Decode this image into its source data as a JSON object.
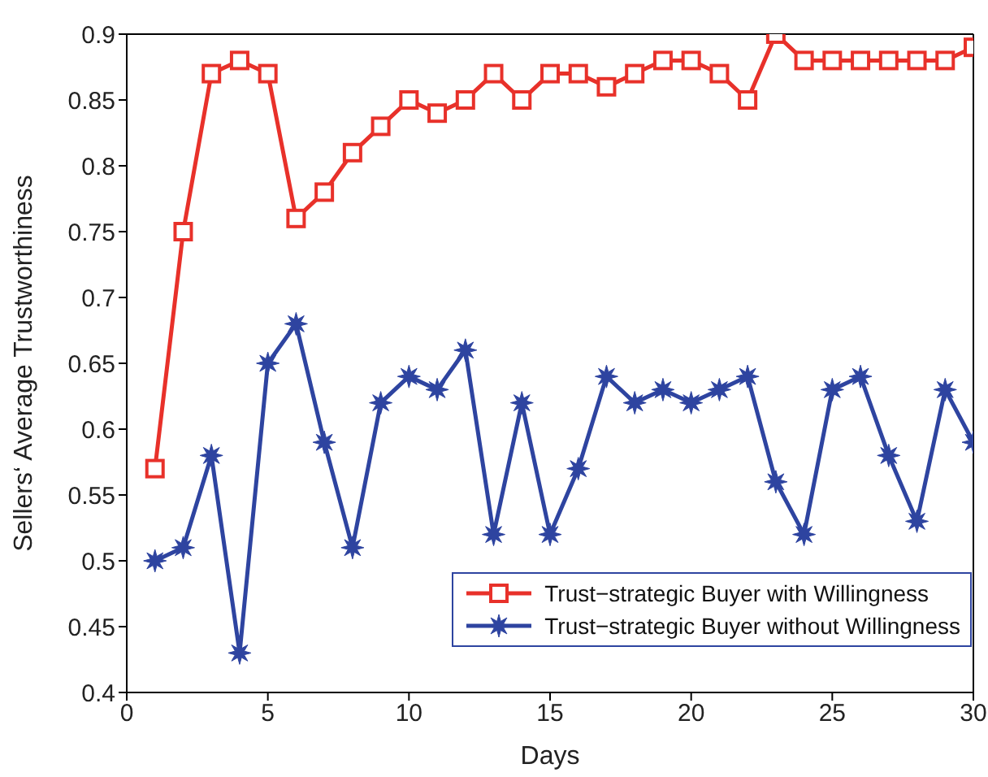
{
  "chart_data": {
    "type": "line",
    "xlabel": "Days",
    "ylabel": "Sellers‘ Average Trustworthiness",
    "x": [
      1,
      2,
      3,
      4,
      5,
      6,
      7,
      8,
      9,
      10,
      11,
      12,
      13,
      14,
      15,
      16,
      17,
      18,
      19,
      20,
      21,
      22,
      23,
      24,
      25,
      26,
      27,
      28,
      29,
      30
    ],
    "series": [
      {
        "name": "Trust−strategic Buyer with Willingness",
        "color": "#e8312a",
        "marker": "square",
        "values": [
          0.57,
          0.75,
          0.87,
          0.88,
          0.87,
          0.76,
          0.78,
          0.81,
          0.83,
          0.85,
          0.84,
          0.85,
          0.87,
          0.85,
          0.87,
          0.87,
          0.86,
          0.87,
          0.88,
          0.88,
          0.87,
          0.85,
          0.9,
          0.88,
          0.88,
          0.88,
          0.88,
          0.88,
          0.88,
          0.89
        ]
      },
      {
        "name": "Trust−strategic Buyer without Willingness",
        "color": "#2e44a0",
        "marker": "star",
        "values": [
          0.5,
          0.51,
          0.58,
          0.43,
          0.65,
          0.68,
          0.59,
          0.51,
          0.62,
          0.64,
          0.63,
          0.66,
          0.52,
          0.62,
          0.52,
          0.57,
          0.64,
          0.62,
          0.63,
          0.62,
          0.63,
          0.64,
          0.56,
          0.52,
          0.63,
          0.64,
          0.58,
          0.53,
          0.63,
          0.59
        ]
      }
    ],
    "xlim": [
      0,
      30
    ],
    "xticks": [
      0,
      5,
      10,
      15,
      20,
      25,
      30
    ],
    "ylim": [
      0.4,
      0.9
    ],
    "yticks": [
      0.4,
      0.45,
      0.5,
      0.55,
      0.6,
      0.65,
      0.7,
      0.75,
      0.8,
      0.85,
      0.9
    ],
    "grid": false,
    "legend": "bottom right",
    "line_style": "solid"
  }
}
